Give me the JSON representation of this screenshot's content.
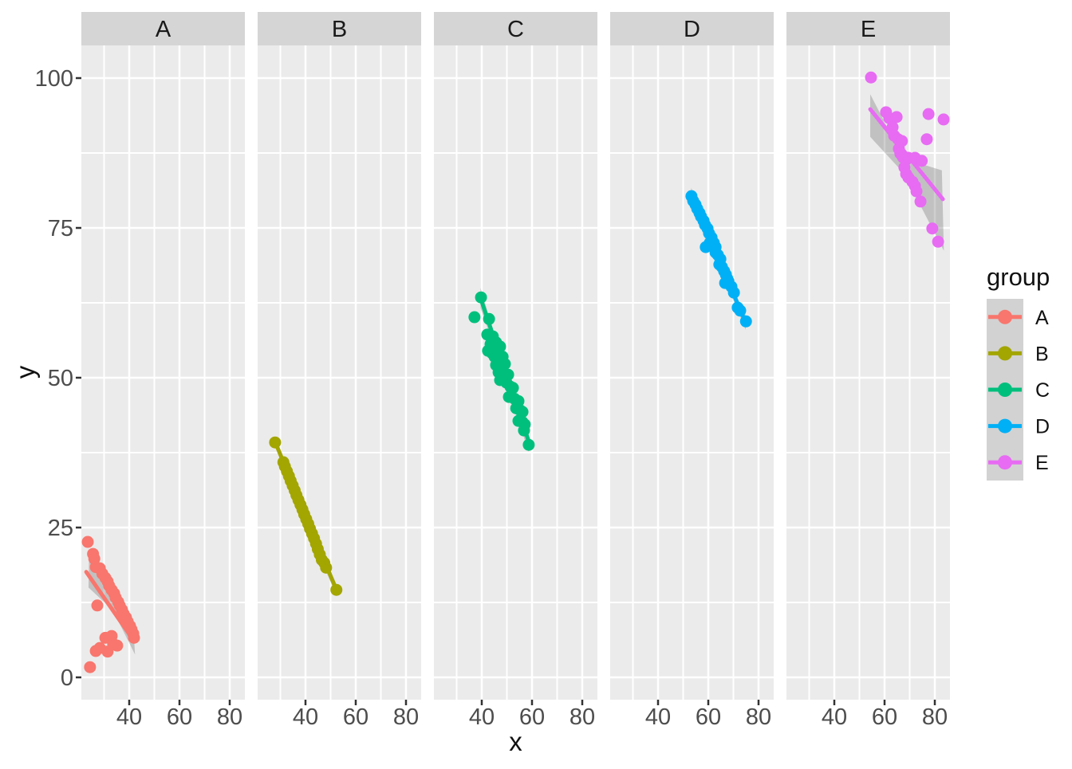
{
  "chart_data": {
    "type": "scatter",
    "title": "",
    "xlabel": "x",
    "ylabel": "y",
    "x_ticks": [
      40,
      60,
      80
    ],
    "x_minor_ticks": [
      30,
      50,
      70
    ],
    "y_ticks": [
      0,
      25,
      50,
      75,
      100
    ],
    "y_minor_ticks": [
      12.5,
      37.5,
      62.5,
      87.5
    ],
    "x_range": [
      21,
      86
    ],
    "y_range": [
      -3.7,
      105.4
    ],
    "grid": true,
    "facet_variable_values": [
      "A",
      "B",
      "C",
      "D",
      "E"
    ],
    "legend": {
      "title": "group",
      "position": "right",
      "entries": [
        {
          "label": "A",
          "color": "#F8766D"
        },
        {
          "label": "B",
          "color": "#A3A500"
        },
        {
          "label": "C",
          "color": "#00BF7D"
        },
        {
          "label": "D",
          "color": "#00B0F6"
        },
        {
          "label": "E",
          "color": "#E76BF3"
        }
      ]
    },
    "styles": {
      "panel_bg": "#EBEBEB",
      "strip_bg": "#D5D5D5",
      "grid_color": "#FFFFFF",
      "tick_mark_color": "#333333",
      "tick_label_color": "#4D4D4D",
      "strip_text_color": "#1A1A1A",
      "ci_band_fill": "rgba(110,110,110,0.33)",
      "legend_key_bg": "#D2D2D2"
    },
    "facets": [
      {
        "label": "A",
        "color": "#F8766D",
        "points": [
          [
            23.5,
            22.6
          ],
          [
            25.6,
            20.6
          ],
          [
            26.1,
            19.8
          ],
          [
            26.7,
            18.4
          ],
          [
            28.3,
            18.2
          ],
          [
            29.3,
            17.3
          ],
          [
            30.5,
            16.6
          ],
          [
            31.4,
            16.0
          ],
          [
            32.0,
            15.3
          ],
          [
            33.0,
            14.6
          ],
          [
            34.0,
            14.0
          ],
          [
            34.6,
            13.3
          ],
          [
            35.6,
            12.6
          ],
          [
            36.2,
            12.0
          ],
          [
            27.3,
            12.0
          ],
          [
            37.1,
            11.3
          ],
          [
            37.8,
            10.6
          ],
          [
            38.7,
            10.0
          ],
          [
            39.4,
            9.3
          ],
          [
            40.3,
            8.6
          ],
          [
            40.9,
            8.0
          ],
          [
            41.6,
            7.3
          ],
          [
            41.9,
            6.6
          ],
          [
            30.5,
            6.6
          ],
          [
            33.0,
            6.9
          ],
          [
            33.6,
            5.6
          ],
          [
            35.2,
            5.3
          ],
          [
            28.3,
            4.9
          ],
          [
            26.7,
            4.4
          ],
          [
            31.4,
            4.3
          ],
          [
            24.4,
            1.7
          ]
        ],
        "smooth_line": [
          [
            22.9,
            17.6
          ],
          [
            42.0,
            6.0
          ]
        ],
        "ci_band": [
          [
            24.0,
            20.0
          ],
          [
            33.5,
            12.6
          ],
          [
            41.5,
            9.6
          ],
          [
            42.3,
            3.8
          ],
          [
            33.5,
            11.2
          ],
          [
            23.8,
            15.0
          ]
        ]
      },
      {
        "label": "B",
        "color": "#A3A500",
        "points": [
          [
            27.9,
            39.2
          ],
          [
            31.2,
            35.9
          ],
          [
            31.8,
            35.2
          ],
          [
            32.6,
            34.4
          ],
          [
            33.4,
            33.6
          ],
          [
            34.1,
            32.8
          ],
          [
            34.9,
            32.0
          ],
          [
            35.7,
            31.2
          ],
          [
            36.4,
            30.4
          ],
          [
            37.2,
            29.6
          ],
          [
            38.0,
            28.8
          ],
          [
            38.8,
            28.0
          ],
          [
            39.5,
            27.2
          ],
          [
            40.3,
            26.4
          ],
          [
            41.1,
            25.6
          ],
          [
            41.8,
            24.8
          ],
          [
            42.6,
            24.0
          ],
          [
            43.4,
            23.2
          ],
          [
            44.2,
            22.3
          ],
          [
            44.9,
            21.4
          ],
          [
            45.7,
            20.5
          ],
          [
            46.5,
            19.6
          ],
          [
            47.5,
            19.1
          ],
          [
            48.2,
            18.3
          ],
          [
            52.3,
            14.6
          ]
        ],
        "smooth_line": [
          [
            27.9,
            39.3
          ],
          [
            52.3,
            14.6
          ]
        ],
        "ci_band": [
          [
            27.9,
            40.1
          ],
          [
            40.0,
            26.7
          ],
          [
            52.3,
            15.6
          ],
          [
            52.3,
            13.7
          ],
          [
            40.0,
            25.6
          ],
          [
            27.9,
            38.5
          ]
        ]
      },
      {
        "label": "C",
        "color": "#00BF7D",
        "points": [
          [
            39.7,
            63.4
          ],
          [
            37.1,
            60.1
          ],
          [
            42.9,
            59.8
          ],
          [
            42.2,
            57.2
          ],
          [
            44.4,
            56.9
          ],
          [
            43.5,
            55.6
          ],
          [
            45.7,
            55.9
          ],
          [
            42.5,
            54.5
          ],
          [
            44.1,
            54.1
          ],
          [
            46.0,
            54.5
          ],
          [
            47.3,
            55.2
          ],
          [
            45.1,
            53.5
          ],
          [
            46.7,
            53.2
          ],
          [
            48.3,
            53.5
          ],
          [
            45.7,
            52.1
          ],
          [
            47.6,
            51.9
          ],
          [
            49.2,
            52.3
          ],
          [
            46.7,
            50.9
          ],
          [
            48.9,
            50.8
          ],
          [
            50.5,
            50.5
          ],
          [
            47.3,
            49.6
          ],
          [
            49.8,
            49.2
          ],
          [
            51.4,
            48.5
          ],
          [
            52.4,
            48.3
          ],
          [
            50.8,
            46.8
          ],
          [
            53.0,
            46.5
          ],
          [
            54.6,
            46.1
          ],
          [
            53.7,
            44.9
          ],
          [
            55.2,
            44.6
          ],
          [
            56.2,
            44.3
          ],
          [
            54.6,
            42.8
          ],
          [
            56.2,
            42.6
          ],
          [
            57.1,
            42.2
          ],
          [
            56.8,
            41.2
          ],
          [
            58.7,
            38.8
          ]
        ],
        "smooth_line": [
          [
            39.5,
            63.3
          ],
          [
            58.6,
            39.5
          ]
        ],
        "ci_band": [
          [
            39.5,
            65.0
          ],
          [
            49.0,
            51.6
          ],
          [
            58.6,
            41.6
          ],
          [
            58.6,
            37.6
          ],
          [
            49.0,
            50.4
          ],
          [
            39.5,
            61.6
          ]
        ]
      },
      {
        "label": "D",
        "color": "#00B0F6",
        "points": [
          [
            53.3,
            80.3
          ],
          [
            54.0,
            79.5
          ],
          [
            54.9,
            78.9
          ],
          [
            55.6,
            78.2
          ],
          [
            56.5,
            77.5
          ],
          [
            57.1,
            76.9
          ],
          [
            58.1,
            76.2
          ],
          [
            58.7,
            75.5
          ],
          [
            59.7,
            74.9
          ],
          [
            60.3,
            74.1
          ],
          [
            61.3,
            73.4
          ],
          [
            60.6,
            72.5
          ],
          [
            59.0,
            71.8
          ],
          [
            62.2,
            72.5
          ],
          [
            62.9,
            71.8
          ],
          [
            62.9,
            70.9
          ],
          [
            63.8,
            70.5
          ],
          [
            64.8,
            69.8
          ],
          [
            64.4,
            68.9
          ],
          [
            65.4,
            68.5
          ],
          [
            66.3,
            67.8
          ],
          [
            67.0,
            67.2
          ],
          [
            67.6,
            66.5
          ],
          [
            66.7,
            65.8
          ],
          [
            68.0,
            66.1
          ],
          [
            69.2,
            65.2
          ],
          [
            70.2,
            64.2
          ],
          [
            71.7,
            61.7
          ],
          [
            72.7,
            61.2
          ],
          [
            75.0,
            59.4
          ]
        ],
        "smooth_line": [
          [
            53.2,
            80.5
          ],
          [
            74.9,
            59.2
          ]
        ],
        "ci_band": [
          [
            53.2,
            81.7
          ],
          [
            64.0,
            70.0
          ],
          [
            74.9,
            60.4
          ],
          [
            74.9,
            58.0
          ],
          [
            64.0,
            68.9
          ],
          [
            53.2,
            79.3
          ]
        ]
      },
      {
        "label": "E",
        "color": "#E76BF3",
        "points": [
          [
            54.6,
            100.1
          ],
          [
            60.6,
            94.3
          ],
          [
            61.9,
            93.3
          ],
          [
            64.8,
            93.5
          ],
          [
            63.2,
            91.8
          ],
          [
            63.8,
            90.4
          ],
          [
            65.4,
            89.8
          ],
          [
            66.9,
            89.5
          ],
          [
            65.7,
            88.2
          ],
          [
            66.3,
            87.4
          ],
          [
            67.3,
            86.8
          ],
          [
            68.6,
            86.4
          ],
          [
            69.5,
            86.7
          ],
          [
            72.1,
            86.7
          ],
          [
            74.8,
            86.2
          ],
          [
            67.9,
            85.1
          ],
          [
            68.6,
            84.0
          ],
          [
            69.5,
            83.4
          ],
          [
            71.1,
            82.7
          ],
          [
            72.1,
            82.0
          ],
          [
            72.7,
            81.1
          ],
          [
            74.3,
            79.4
          ],
          [
            77.5,
            94.0
          ],
          [
            83.5,
            93.1
          ],
          [
            76.8,
            89.8
          ],
          [
            79.0,
            74.9
          ],
          [
            81.3,
            72.7
          ]
        ],
        "smooth_line": [
          [
            54.3,
            94.8
          ],
          [
            83.2,
            79.8
          ]
        ],
        "ci_band": [
          [
            54.3,
            97.3
          ],
          [
            67.5,
            86.6
          ],
          [
            82.8,
            84.6
          ],
          [
            83.6,
            71.2
          ],
          [
            67.5,
            84.2
          ],
          [
            54.3,
            90.2
          ]
        ]
      }
    ]
  }
}
